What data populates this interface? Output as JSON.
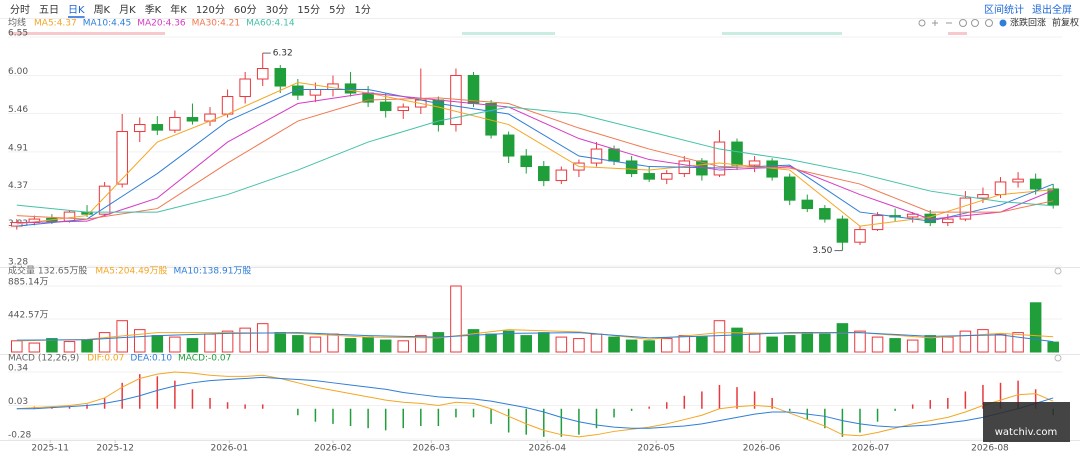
{
  "toolbar": {
    "tabs": [
      "分时",
      "五日",
      "日K",
      "周K",
      "月K",
      "季K",
      "年K",
      "120分",
      "60分",
      "30分",
      "15分",
      "5分",
      "1分"
    ],
    "active_tab": 2,
    "actions": [
      "区间统计",
      "退出全屏"
    ],
    "options": [
      "涨跌回涨",
      "前复权"
    ]
  },
  "watermark": "watchiv.com",
  "chart_data": [
    {
      "type": "candlestick",
      "title": "均线",
      "up_color": "#e8383d",
      "down_color": "#1f9e3a",
      "grid": true,
      "xlim": [
        -0.5,
        59.5
      ],
      "ylim": [
        3.28,
        6.55
      ],
      "yticks": [
        6.55,
        {
          "value": 6,
          "label": "6.00"
        },
        5.46,
        4.91,
        4.37,
        3.83,
        3.28
      ],
      "open": [
        3.85,
        3.9,
        3.96,
        3.92,
        4.05,
        4.02,
        4.45,
        5.2,
        5.3,
        5.22,
        5.4,
        5.35,
        5.45,
        5.7,
        5.95,
        6.1,
        5.85,
        5.72,
        5.8,
        5.88,
        5.75,
        5.62,
        5.5,
        5.55,
        5.65,
        5.3,
        6,
        5.6,
        5.15,
        4.85,
        4.7,
        4.5,
        4.65,
        4.75,
        4.95,
        4.78,
        4.6,
        4.52,
        4.6,
        4.78,
        4.58,
        5.05,
        4.72,
        4.78,
        4.55,
        4.22,
        4.1,
        3.95,
        3.62,
        3.8,
        4,
        3.98,
        4.02,
        3.9,
        3.95,
        4.25,
        4.3,
        4.48,
        4.52,
        4.38
      ],
      "high": [
        3.95,
        4,
        4.02,
        4.08,
        4.15,
        4.48,
        5.45,
        5.4,
        5.42,
        5.5,
        5.6,
        5.55,
        5.8,
        6.05,
        6.32,
        6.15,
        5.95,
        5.9,
        6,
        6.05,
        5.85,
        5.75,
        5.6,
        6.1,
        5.7,
        6.1,
        6.05,
        5.65,
        5.2,
        4.95,
        4.78,
        4.7,
        4.8,
        5.05,
        5,
        4.85,
        4.7,
        4.65,
        4.85,
        4.82,
        5.22,
        5.1,
        4.85,
        4.82,
        4.6,
        4.3,
        4.15,
        4,
        3.85,
        4.05,
        4.1,
        4.05,
        4.08,
        4.02,
        4.35,
        4.4,
        4.55,
        4.62,
        4.6,
        4.45
      ],
      "low": [
        3.8,
        3.86,
        3.88,
        3.9,
        3.98,
        4,
        4.4,
        5.05,
        5.15,
        5.18,
        5.3,
        5.28,
        5.4,
        5.6,
        5.85,
        5.75,
        5.65,
        5.62,
        5.7,
        5.7,
        5.55,
        5.4,
        5.38,
        5.45,
        5.2,
        5.2,
        5.55,
        5.1,
        4.75,
        4.6,
        4.42,
        4.45,
        4.55,
        4.7,
        4.72,
        4.55,
        4.48,
        4.45,
        4.55,
        4.5,
        4.55,
        4.65,
        4.62,
        4.5,
        4.15,
        4.05,
        3.9,
        3.5,
        3.58,
        3.78,
        3.92,
        3.9,
        3.85,
        3.85,
        3.92,
        4.18,
        4.25,
        4.4,
        4.3,
        4.1
      ],
      "close": [
        3.9,
        3.95,
        3.92,
        4.05,
        4.02,
        4.42,
        5.2,
        5.3,
        5.22,
        5.4,
        5.35,
        5.45,
        5.7,
        5.95,
        6.1,
        5.85,
        5.72,
        5.8,
        5.88,
        5.75,
        5.62,
        5.5,
        5.55,
        5.65,
        5.3,
        6,
        5.6,
        5.15,
        4.85,
        4.7,
        4.5,
        4.65,
        4.75,
        4.95,
        4.78,
        4.6,
        4.52,
        4.6,
        4.78,
        4.58,
        5.05,
        4.72,
        4.78,
        4.55,
        4.22,
        4.1,
        3.95,
        3.62,
        3.8,
        4,
        3.98,
        4.02,
        3.9,
        3.95,
        4.25,
        4.3,
        4.48,
        4.52,
        4.38,
        4.15
      ],
      "series": [
        {
          "name": "MA5:4.37",
          "color": "#f5a623",
          "x": [
            0,
            4,
            8,
            12,
            16,
            20,
            24,
            28,
            32,
            36,
            40,
            44,
            48,
            52,
            56,
            59
          ],
          "values": [
            3.88,
            4,
            5.05,
            5.45,
            5.9,
            5.75,
            5.55,
            5.3,
            4.7,
            4.65,
            4.75,
            4.65,
            3.85,
            3.98,
            4.3,
            4.37
          ]
        },
        {
          "name": "MA10:4.45",
          "color": "#2f7ed8",
          "x": [
            0,
            4,
            8,
            12,
            16,
            20,
            24,
            28,
            32,
            36,
            40,
            44,
            48,
            52,
            56,
            59
          ],
          "values": [
            3.85,
            3.95,
            4.6,
            5.35,
            5.8,
            5.8,
            5.6,
            5.45,
            4.85,
            4.7,
            4.68,
            4.72,
            4.05,
            3.92,
            4.15,
            4.45
          ]
        },
        {
          "name": "MA20:4.36",
          "color": "#d63cc4",
          "x": [
            0,
            4,
            8,
            12,
            16,
            20,
            24,
            28,
            32,
            36,
            40,
            44,
            48,
            52,
            56,
            59
          ],
          "values": [
            3.9,
            3.92,
            4.25,
            5.05,
            5.6,
            5.75,
            5.65,
            5.55,
            5.1,
            4.8,
            4.65,
            4.7,
            4.3,
            3.95,
            4.05,
            4.36
          ]
        },
        {
          "name": "MA30:4.21",
          "color": "#f07850",
          "x": [
            0,
            4,
            8,
            12,
            16,
            20,
            24,
            28,
            32,
            36,
            40,
            44,
            48,
            52,
            56,
            59
          ],
          "values": [
            4,
            3.95,
            4.1,
            4.75,
            5.35,
            5.65,
            5.68,
            5.6,
            5.25,
            4.95,
            4.7,
            4.68,
            4.45,
            4.05,
            4.05,
            4.21
          ]
        },
        {
          "name": "MA60:4.14",
          "color": "#44c1a8",
          "x": [
            0,
            4,
            8,
            12,
            16,
            20,
            24,
            28,
            32,
            36,
            40,
            44,
            48,
            52,
            56,
            59
          ],
          "values": [
            4.15,
            4.05,
            4.05,
            4.3,
            4.65,
            5.05,
            5.35,
            5.55,
            5.45,
            5.2,
            4.95,
            4.8,
            4.6,
            4.35,
            4.2,
            4.14
          ]
        }
      ],
      "annotations": [
        {
          "x": 14,
          "value": 6.32
        },
        {
          "x": 47,
          "value": 3.5,
          "label": "3.50"
        }
      ]
    },
    {
      "type": "bar",
      "title": "成交量 132.65万股",
      "up_color": "#e8383d",
      "down_color": "#1f9e3a",
      "grid": true,
      "xlim": [
        -0.5,
        59.5
      ],
      "ylim": [
        0,
        885.14
      ],
      "yticks": [
        {
          "value": 885.14,
          "label": "885.14万"
        },
        {
          "value": 442.57,
          "label": "442.57万"
        }
      ],
      "values": [
        150,
        120,
        180,
        140,
        160,
        260,
        420,
        300,
        220,
        200,
        180,
        240,
        280,
        320,
        380,
        260,
        220,
        200,
        240,
        180,
        200,
        160,
        150,
        220,
        260,
        885,
        300,
        240,
        280,
        220,
        260,
        200,
        180,
        240,
        200,
        160,
        150,
        180,
        220,
        200,
        420,
        320,
        240,
        200,
        220,
        260,
        240,
        380,
        280,
        200,
        180,
        160,
        220,
        200,
        280,
        300,
        240,
        260,
        660,
        132.65
      ],
      "series": [
        {
          "name": "MA5:204.49万股",
          "color": "#f5a623",
          "x": [
            0,
            4,
            8,
            12,
            16,
            20,
            24,
            28,
            32,
            36,
            40,
            44,
            48,
            52,
            56,
            59
          ],
          "values": [
            150,
            170,
            260,
            260,
            250,
            200,
            190,
            300,
            270,
            170,
            260,
            250,
            260,
            190,
            250,
            204.49
          ]
        },
        {
          "name": "MA10:138.91万股",
          "color": "#2f7ed8",
          "x": [
            0,
            4,
            8,
            12,
            16,
            20,
            24,
            28,
            32,
            36,
            40,
            44,
            48,
            52,
            56,
            59
          ],
          "values": [
            160,
            165,
            220,
            250,
            260,
            220,
            200,
            250,
            260,
            190,
            220,
            260,
            260,
            210,
            230,
            138.91
          ]
        }
      ]
    },
    {
      "type": "macd",
      "title": "MACD (12,26,9)",
      "hist_name": "MACD:-0.07",
      "up_color": "#e8383d",
      "down_color": "#1f9e3a",
      "grid": true,
      "xlim": [
        -0.5,
        59.5
      ],
      "ylim": [
        -0.28,
        0.34
      ],
      "yticks": [
        0.34,
        0.03,
        -0.28
      ],
      "xticks": [
        {
          "value": 1.9,
          "label": "2025-11"
        },
        {
          "value": 5.6,
          "label": "2025-12"
        },
        {
          "value": 12.1,
          "label": "2026-01"
        },
        {
          "value": 18,
          "label": "2026-02"
        },
        {
          "value": 23.6,
          "label": "2026-03"
        },
        {
          "value": 30.2,
          "label": "2026-04"
        },
        {
          "value": 36.4,
          "label": "2026-05"
        },
        {
          "value": 42.4,
          "label": "2026-06"
        },
        {
          "value": 48.6,
          "label": "2026-07"
        },
        {
          "value": 55.4,
          "label": "2026-08"
        }
      ],
      "values": [
        0,
        0.02,
        0.02,
        0.02,
        0.04,
        0.1,
        0.24,
        0.32,
        0.3,
        0.26,
        0.18,
        0.1,
        0.06,
        0.04,
        0.04,
        0,
        -0.06,
        -0.12,
        -0.14,
        -0.16,
        -0.18,
        -0.2,
        -0.18,
        -0.16,
        -0.16,
        -0.08,
        -0.08,
        -0.14,
        -0.22,
        -0.24,
        -0.26,
        -0.26,
        -0.24,
        -0.18,
        -0.08,
        -0.02,
        0.02,
        0.06,
        0.12,
        0.16,
        0.22,
        0.2,
        0.16,
        0.1,
        -0.02,
        -0.1,
        -0.18,
        -0.26,
        -0.22,
        -0.12,
        -0.02,
        0.04,
        0.08,
        0.1,
        0.16,
        0.22,
        0.24,
        0.26,
        0.18,
        -0.06
      ],
      "series": [
        {
          "name": "DIF:0.07",
          "color": "#f5a623",
          "x": [
            0,
            1,
            2,
            3,
            4,
            5,
            6,
            7,
            8,
            9,
            10,
            11,
            12,
            13,
            14,
            15,
            16,
            17,
            18,
            19,
            20,
            21,
            22,
            23,
            24,
            25,
            26,
            27,
            28,
            29,
            30,
            31,
            32,
            33,
            34,
            35,
            36,
            37,
            38,
            39,
            40,
            41,
            42,
            43,
            44,
            45,
            46,
            47,
            48,
            49,
            50,
            51,
            52,
            53,
            54,
            55,
            56,
            57,
            58,
            59
          ],
          "values": [
            0,
            0.01,
            0.02,
            0.03,
            0.05,
            0.1,
            0.2,
            0.28,
            0.32,
            0.34,
            0.33,
            0.31,
            0.3,
            0.3,
            0.31,
            0.28,
            0.24,
            0.2,
            0.17,
            0.14,
            0.11,
            0.08,
            0.06,
            0.05,
            0.03,
            0.06,
            0.05,
            0,
            -0.07,
            -0.14,
            -0.2,
            -0.24,
            -0.26,
            -0.24,
            -0.21,
            -0.19,
            -0.17,
            -0.14,
            -0.1,
            -0.06,
            0,
            0.02,
            0.03,
            0.02,
            -0.04,
            -0.1,
            -0.16,
            -0.24,
            -0.25,
            -0.22,
            -0.18,
            -0.14,
            -0.11,
            -0.08,
            -0.03,
            0.03,
            0.08,
            0.13,
            0.14,
            0.07
          ]
        },
        {
          "name": "DEA:0.10",
          "color": "#2f7ed8",
          "x": [
            0,
            1,
            2,
            3,
            4,
            5,
            6,
            7,
            8,
            9,
            10,
            11,
            12,
            13,
            14,
            15,
            16,
            17,
            18,
            19,
            20,
            21,
            22,
            23,
            24,
            25,
            26,
            27,
            28,
            29,
            30,
            31,
            32,
            33,
            34,
            35,
            36,
            37,
            38,
            39,
            40,
            41,
            42,
            43,
            44,
            45,
            46,
            47,
            48,
            49,
            50,
            51,
            52,
            53,
            54,
            55,
            56,
            57,
            58,
            59
          ],
          "values": [
            0,
            0,
            0.01,
            0.02,
            0.03,
            0.05,
            0.08,
            0.12,
            0.17,
            0.21,
            0.24,
            0.26,
            0.27,
            0.28,
            0.29,
            0.28,
            0.27,
            0.26,
            0.24,
            0.22,
            0.2,
            0.18,
            0.15,
            0.13,
            0.11,
            0.1,
            0.09,
            0.07,
            0.04,
            0.01,
            -0.03,
            -0.08,
            -0.12,
            -0.15,
            -0.17,
            -0.18,
            -0.18,
            -0.17,
            -0.16,
            -0.14,
            -0.11,
            -0.08,
            -0.05,
            -0.03,
            -0.03,
            -0.05,
            -0.07,
            -0.11,
            -0.14,
            -0.16,
            -0.17,
            -0.16,
            -0.15,
            -0.13,
            -0.11,
            -0.08,
            -0.04,
            0,
            0.05,
            0.1
          ]
        }
      ]
    }
  ]
}
